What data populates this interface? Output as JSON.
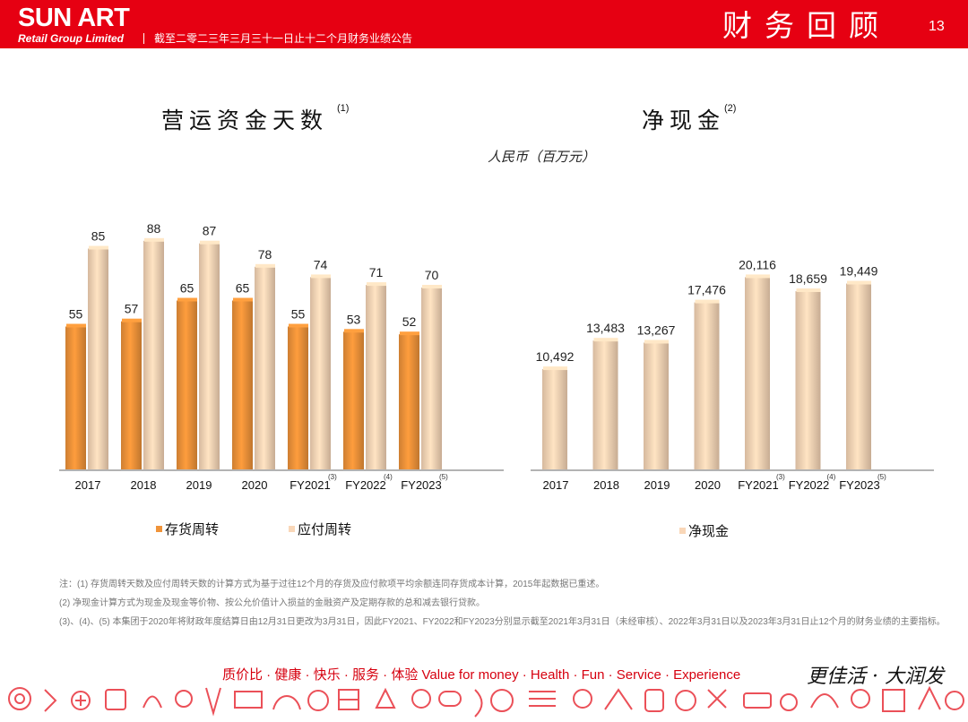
{
  "header": {
    "logo_main": "SUN ART",
    "logo_sub": "Retail Group Limited",
    "subtitle": "截至二零二三年三月三十一日止十二个月财务业绩公告",
    "title": "财务回顾",
    "page_number": "13",
    "bg_color": "#e60012"
  },
  "left_chart": {
    "title": "营运资金天数",
    "title_sup": "(1)"
  },
  "right_chart": {
    "title": "净现金",
    "title_sup": "(2)",
    "unit": "人民币（百万元）"
  },
  "chart_data": [
    {
      "type": "bar",
      "title": "营运资金天数",
      "categories": [
        "2017",
        "2018",
        "2019",
        "2020",
        "FY2021",
        "FY2022",
        "FY2023"
      ],
      "category_superscripts": [
        "",
        "",
        "",
        "",
        "(3)",
        "(4)",
        "(5)"
      ],
      "series": [
        {
          "name": "存货周转",
          "color": "#f0943a",
          "values": [
            55,
            57,
            65,
            65,
            55,
            53,
            52
          ]
        },
        {
          "name": "应付周转",
          "color": "#f9d7b8",
          "values": [
            85,
            88,
            87,
            78,
            74,
            71,
            70
          ]
        }
      ],
      "ylim": [
        0,
        100
      ],
      "grid": false,
      "legend": "bottom"
    },
    {
      "type": "bar",
      "title": "净现金",
      "unit": "人民币（百万元）",
      "categories": [
        "2017",
        "2018",
        "2019",
        "2020",
        "FY2021",
        "FY2022",
        "FY2023"
      ],
      "category_superscripts": [
        "",
        "",
        "",
        "",
        "(3)",
        "(4)",
        "(5)"
      ],
      "series": [
        {
          "name": "净现金",
          "color": "#f9d7b8",
          "values": [
            10492,
            13483,
            13267,
            17476,
            20116,
            18659,
            19449
          ]
        }
      ],
      "value_labels": [
        "10,492",
        "13,483",
        "13,267",
        "17,476",
        "20,116",
        "18,659",
        "19,449"
      ],
      "ylim": [
        0,
        22500
      ],
      "grid": false,
      "legend": "bottom"
    }
  ],
  "notes": [
    "注：(1) 存货周转天数及应付周转天数的计算方式为基于过往12个月的存货及应付款项平均余额连同存货成本计算，2015年起数据已重述。",
    "(2) 净现金计算方式为现金及现金等价物、按公允价值计入损益的金融资产及定期存款的总和减去银行贷款。",
    "(3)、(4)、(5) 本集团于2020年将财政年度结算日由12月31日更改为3月31日，因此FY2021、FY2022和FY2023分别显示截至2021年3月31日（未经审核）、2022年3月31日以及2023年3月31日止12个月的财务业绩的主要指标。"
  ],
  "footer": {
    "slogan": "质价比 · 健康 · 快乐 · 服务 · 体验    Value for money · Health · Fun · Service · Experience",
    "brand_script": "更佳活 · 大润发",
    "accent_color": "#d6000f"
  }
}
